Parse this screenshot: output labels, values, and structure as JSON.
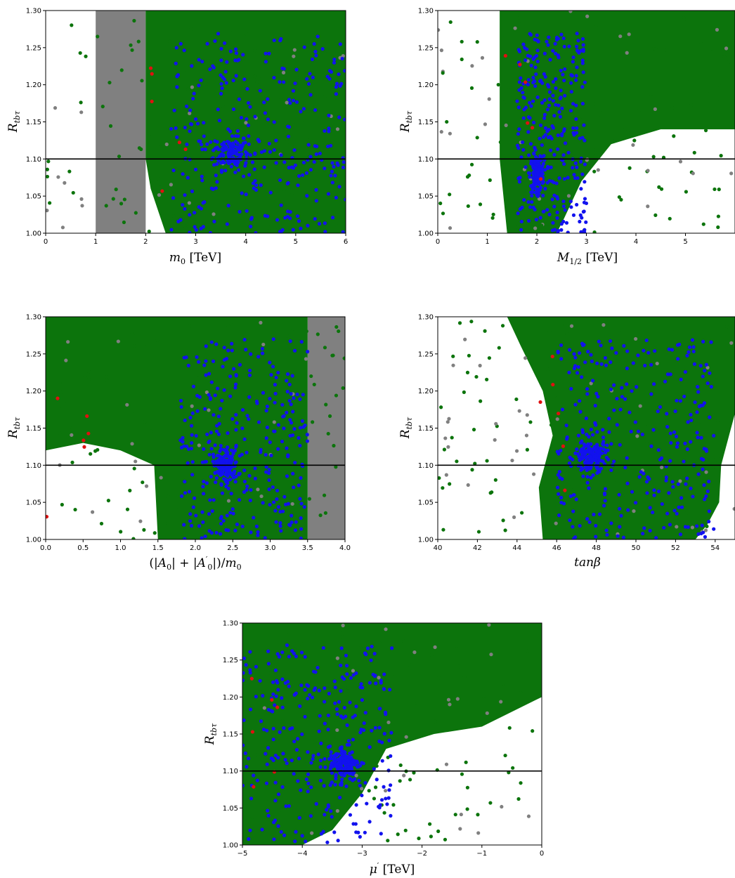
{
  "colors": {
    "grey": "#808080",
    "green": "#0c740c",
    "blue": "#1212ee",
    "red": "#e01010",
    "line": "#000000"
  },
  "chart_data": [
    {
      "type": "scatter",
      "xlabel": "m_0 [TeV]",
      "ylabel": "R_tbτ",
      "xlim": [
        0,
        6
      ],
      "ylim": [
        1.0,
        1.3
      ],
      "xticks": [
        0,
        1,
        2,
        3,
        4,
        5,
        6
      ],
      "yticks": [
        1.0,
        1.05,
        1.1,
        1.15,
        1.2,
        1.25,
        1.3
      ],
      "hline": 1.1,
      "grey_band": [
        1.0,
        2.0
      ],
      "green_fill": [
        2.0,
        6.0
      ],
      "green_scatter": [
        1.0,
        2.1
      ],
      "blue_center": [
        3.7,
        1.11
      ],
      "blue_xrange": [
        2.5,
        6.0
      ],
      "grid": false,
      "legend": "none"
    },
    {
      "type": "scatter",
      "xlabel": "M_1/2 [TeV]",
      "ylabel": "R_tbτ",
      "xlim": [
        0,
        6
      ],
      "ylim": [
        1.0,
        1.3
      ],
      "xticks": [
        0,
        1,
        2,
        3,
        4,
        5
      ],
      "yticks": [
        1.0,
        1.05,
        1.1,
        1.15,
        1.2,
        1.25,
        1.3
      ],
      "hline": 1.1,
      "green_fill": [
        1.2,
        6.0
      ],
      "blue_center": [
        2.0,
        1.08
      ],
      "blue_xrange": [
        1.6,
        3.0
      ],
      "grid": false,
      "legend": "none"
    },
    {
      "type": "scatter",
      "xlabel": "(|A_0| + |A'_0|)/m_0",
      "ylabel": "R_tbτ",
      "xlim": [
        0,
        4
      ],
      "ylim": [
        1.0,
        1.3
      ],
      "xticks": [
        0.0,
        0.5,
        1.0,
        1.5,
        2.0,
        2.5,
        3.0,
        3.5,
        4.0
      ],
      "yticks": [
        1.0,
        1.05,
        1.1,
        1.15,
        1.2,
        1.25,
        1.3
      ],
      "hline": 1.1,
      "grey_band": [
        3.5,
        4.0
      ],
      "green_fill": [
        0.0,
        3.5
      ],
      "blue_center": [
        2.4,
        1.1
      ],
      "blue_xrange": [
        1.8,
        3.5
      ],
      "grid": false,
      "legend": "none"
    },
    {
      "type": "scatter",
      "xlabel": "tanβ",
      "ylabel": "R_tbτ",
      "xlim": [
        40,
        55
      ],
      "ylim": [
        1.0,
        1.3
      ],
      "xticks": [
        40,
        42,
        44,
        46,
        48,
        50,
        52,
        54
      ],
      "yticks": [
        1.0,
        1.05,
        1.1,
        1.15,
        1.2,
        1.25,
        1.3
      ],
      "hline": 1.1,
      "green_fill": [
        45.0,
        55.0
      ],
      "blue_center": [
        47.7,
        1.11
      ],
      "blue_xrange": [
        46.0,
        54.0
      ],
      "grid": false,
      "legend": "none"
    },
    {
      "type": "scatter",
      "xlabel": "μ' [TeV]",
      "ylabel": "R_tbτ",
      "xlim": [
        -5,
        0
      ],
      "ylim": [
        1.0,
        1.3
      ],
      "xticks": [
        -5,
        -4,
        -3,
        -2,
        -1,
        0
      ],
      "yticks": [
        1.0,
        1.05,
        1.1,
        1.15,
        1.2,
        1.25,
        1.3
      ],
      "hline": 1.1,
      "green_fill": [
        -5.0,
        0.0
      ],
      "blue_center": [
        -3.3,
        1.11
      ],
      "blue_xrange": [
        -5.0,
        -2.5
      ],
      "grid": false,
      "legend": "none"
    }
  ]
}
